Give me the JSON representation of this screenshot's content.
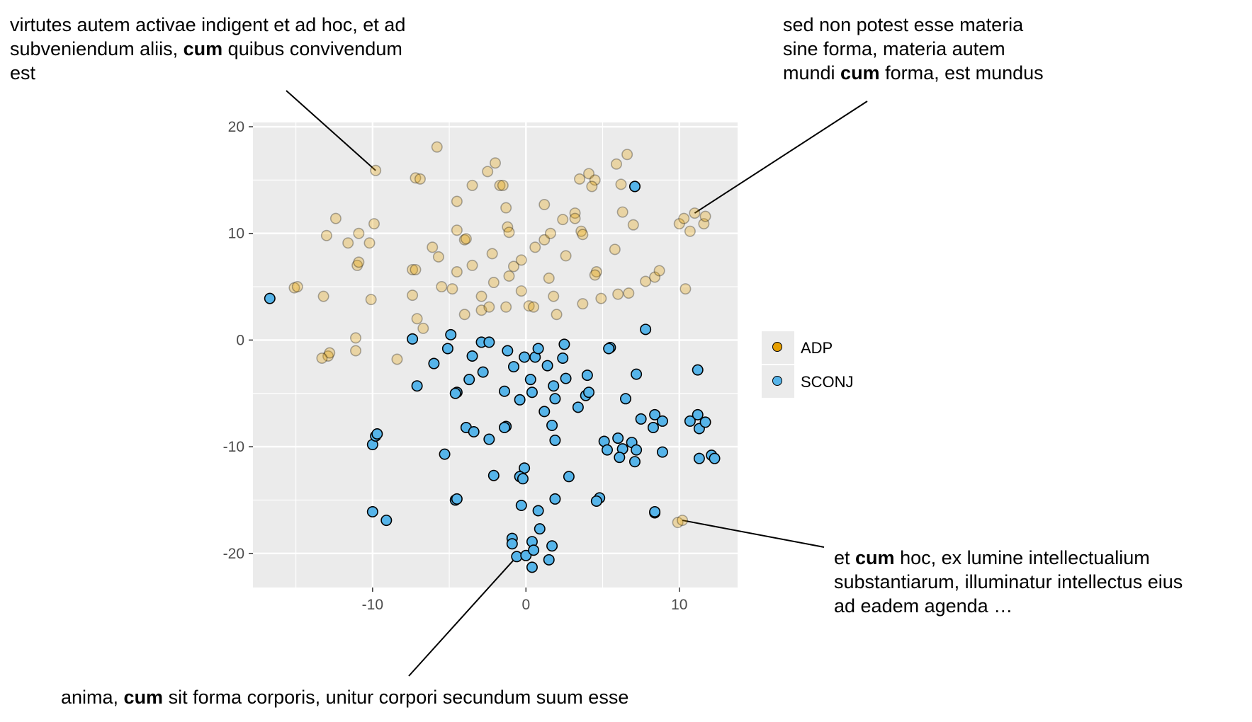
{
  "chart_data": {
    "type": "scatter",
    "title": "",
    "xlabel": "",
    "ylabel": "",
    "xlim": [
      -17.8,
      13.8
    ],
    "ylim": [
      -23.2,
      20.4
    ],
    "x_ticks": [
      -10,
      0,
      10
    ],
    "x_tick_labels": [
      "-10",
      "0",
      "10"
    ],
    "y_ticks": [
      -20,
      -10,
      0,
      10,
      20
    ],
    "y_tick_labels": [
      "-20",
      "-10",
      "0",
      "10",
      "20"
    ],
    "grid": true,
    "legend_position": "right",
    "series": [
      {
        "name": "ADP",
        "color": "#E69F00",
        "highlight": false,
        "points": [
          [
            -9.8,
            15.9
          ],
          [
            -7.2,
            15.2
          ],
          [
            -6.9,
            15.1
          ],
          [
            -5.8,
            18.1
          ],
          [
            -3.5,
            14.5
          ],
          [
            -2.5,
            15.8
          ],
          [
            -2.0,
            16.6
          ],
          [
            -1.7,
            14.5
          ],
          [
            -1.5,
            14.5
          ],
          [
            -4.5,
            13.0
          ],
          [
            -12.4,
            11.4
          ],
          [
            -13.0,
            9.8
          ],
          [
            -11.6,
            9.1
          ],
          [
            -10.9,
            10.0
          ],
          [
            -10.2,
            9.1
          ],
          [
            -9.9,
            10.9
          ],
          [
            -11.0,
            7.0
          ],
          [
            -10.9,
            7.3
          ],
          [
            -4.0,
            9.4
          ],
          [
            -3.9,
            9.5
          ],
          [
            -4.5,
            10.3
          ],
          [
            -1.3,
            12.4
          ],
          [
            -1.2,
            10.6
          ],
          [
            -1.1,
            10.1
          ],
          [
            -2.2,
            8.1
          ],
          [
            -0.8,
            6.9
          ],
          [
            -0.3,
            7.5
          ],
          [
            0.6,
            8.7
          ],
          [
            1.2,
            9.4
          ],
          [
            1.6,
            10.0
          ],
          [
            2.4,
            11.3
          ],
          [
            3.2,
            11.9
          ],
          [
            3.2,
            11.4
          ],
          [
            3.6,
            10.2
          ],
          [
            3.7,
            9.9
          ],
          [
            2.6,
            7.9
          ],
          [
            4.1,
            15.6
          ],
          [
            3.5,
            15.1
          ],
          [
            4.5,
            15.0
          ],
          [
            4.3,
            14.4
          ],
          [
            5.9,
            16.5
          ],
          [
            6.6,
            17.4
          ],
          [
            6.2,
            14.6
          ],
          [
            7.1,
            14.4
          ],
          [
            1.2,
            12.7
          ],
          [
            6.3,
            12.0
          ],
          [
            7.0,
            10.8
          ],
          [
            5.8,
            8.5
          ],
          [
            4.6,
            6.4
          ],
          [
            4.5,
            6.1
          ],
          [
            -7.4,
            6.6
          ],
          [
            -7.2,
            6.6
          ],
          [
            -6.1,
            8.7
          ],
          [
            -5.7,
            7.8
          ],
          [
            -3.5,
            7.0
          ],
          [
            -4.5,
            6.4
          ],
          [
            -5.5,
            5.0
          ],
          [
            -4.8,
            4.8
          ],
          [
            -2.1,
            5.4
          ],
          [
            -1.1,
            6.0
          ],
          [
            -0.3,
            4.6
          ],
          [
            1.5,
            5.8
          ],
          [
            -15.1,
            4.9
          ],
          [
            -14.9,
            5.0
          ],
          [
            -13.2,
            4.1
          ],
          [
            -10.1,
            3.8
          ],
          [
            -7.4,
            4.2
          ],
          [
            -7.1,
            2.0
          ],
          [
            -6.7,
            1.1
          ],
          [
            -4.0,
            2.4
          ],
          [
            -2.9,
            2.8
          ],
          [
            -2.9,
            4.1
          ],
          [
            -2.4,
            3.1
          ],
          [
            -1.3,
            3.1
          ],
          [
            0.2,
            3.2
          ],
          [
            0.5,
            3.1
          ],
          [
            1.8,
            4.1
          ],
          [
            2.0,
            2.4
          ],
          [
            3.7,
            3.4
          ],
          [
            4.9,
            3.9
          ],
          [
            6.0,
            4.3
          ],
          [
            6.7,
            4.4
          ],
          [
            7.8,
            5.5
          ],
          [
            8.4,
            5.9
          ],
          [
            8.7,
            6.5
          ],
          [
            10.0,
            10.9
          ],
          [
            10.3,
            11.4
          ],
          [
            10.7,
            10.2
          ],
          [
            11.0,
            11.9
          ],
          [
            11.6,
            10.9
          ],
          [
            11.7,
            11.6
          ],
          [
            10.4,
            4.8
          ],
          [
            -11.1,
            0.2
          ],
          [
            -11.1,
            -1.0
          ],
          [
            -12.9,
            -1.5
          ],
          [
            -12.8,
            -1.2
          ],
          [
            -13.3,
            -1.7
          ],
          [
            -8.4,
            -1.8
          ],
          [
            9.9,
            -17.1
          ],
          [
            10.2,
            -16.9
          ],
          [
            -10.0,
            -16.1
          ]
        ]
      },
      {
        "name": "SCONJ",
        "color": "#56B4E9",
        "highlight": true,
        "points": [
          [
            -16.7,
            3.9
          ],
          [
            7.1,
            14.4
          ],
          [
            7.8,
            1.0
          ],
          [
            -7.4,
            0.1
          ],
          [
            -4.9,
            0.5
          ],
          [
            -2.9,
            -0.2
          ],
          [
            -2.4,
            -0.2
          ],
          [
            -5.1,
            -0.8
          ],
          [
            -6.0,
            -2.2
          ],
          [
            -3.5,
            -1.5
          ],
          [
            -1.2,
            -1.0
          ],
          [
            -0.1,
            -1.6
          ],
          [
            0.6,
            -1.6
          ],
          [
            0.8,
            -0.8
          ],
          [
            2.5,
            -0.4
          ],
          [
            2.4,
            -1.7
          ],
          [
            -0.8,
            -2.5
          ],
          [
            1.4,
            -2.4
          ],
          [
            5.5,
            -0.7
          ],
          [
            5.4,
            -0.8
          ],
          [
            7.2,
            -3.2
          ],
          [
            -3.7,
            -3.7
          ],
          [
            -2.8,
            -3.0
          ],
          [
            0.3,
            -3.7
          ],
          [
            2.6,
            -3.6
          ],
          [
            4.0,
            -3.3
          ],
          [
            -7.1,
            -4.3
          ],
          [
            -4.5,
            -4.9
          ],
          [
            -4.6,
            -5.0
          ],
          [
            -1.4,
            -4.8
          ],
          [
            0.4,
            -4.9
          ],
          [
            1.8,
            -4.3
          ],
          [
            3.9,
            -5.2
          ],
          [
            4.1,
            -4.9
          ],
          [
            -0.4,
            -5.6
          ],
          [
            1.9,
            -5.5
          ],
          [
            3.4,
            -6.3
          ],
          [
            6.5,
            -5.5
          ],
          [
            1.2,
            -6.7
          ],
          [
            -3.9,
            -8.2
          ],
          [
            -3.4,
            -8.6
          ],
          [
            -2.4,
            -9.3
          ],
          [
            -1.3,
            -8.1
          ],
          [
            -1.4,
            -8.2
          ],
          [
            1.7,
            -8.0
          ],
          [
            1.9,
            -9.4
          ],
          [
            7.5,
            -7.4
          ],
          [
            8.3,
            -8.2
          ],
          [
            8.4,
            -7.0
          ],
          [
            8.9,
            -7.6
          ],
          [
            10.7,
            -7.6
          ],
          [
            11.2,
            -7.0
          ],
          [
            11.3,
            -8.3
          ],
          [
            11.7,
            -7.7
          ],
          [
            11.2,
            -2.8
          ],
          [
            5.1,
            -9.5
          ],
          [
            5.3,
            -10.3
          ],
          [
            6.0,
            -9.2
          ],
          [
            6.3,
            -10.2
          ],
          [
            6.9,
            -9.6
          ],
          [
            7.2,
            -10.3
          ],
          [
            6.1,
            -11.0
          ],
          [
            7.1,
            -11.4
          ],
          [
            8.9,
            -10.5
          ],
          [
            11.3,
            -11.1
          ],
          [
            12.1,
            -10.8
          ],
          [
            12.3,
            -11.1
          ],
          [
            -5.3,
            -10.7
          ],
          [
            -10.0,
            -9.8
          ],
          [
            -9.8,
            -9.0
          ],
          [
            -9.7,
            -8.8
          ],
          [
            -2.1,
            -12.7
          ],
          [
            -0.1,
            -12.0
          ],
          [
            -0.4,
            -12.8
          ],
          [
            -0.2,
            -13.0
          ],
          [
            2.8,
            -12.8
          ],
          [
            -4.6,
            -15.0
          ],
          [
            -4.5,
            -14.9
          ],
          [
            1.9,
            -14.9
          ],
          [
            4.8,
            -14.8
          ],
          [
            4.6,
            -15.1
          ],
          [
            -0.3,
            -15.5
          ],
          [
            0.8,
            -16.0
          ],
          [
            8.4,
            -16.2
          ],
          [
            8.4,
            -16.1
          ],
          [
            -10.0,
            -16.1
          ],
          [
            -9.1,
            -16.9
          ],
          [
            -0.9,
            -18.6
          ],
          [
            -0.9,
            -19.1
          ],
          [
            0.9,
            -17.7
          ],
          [
            0.4,
            -18.9
          ],
          [
            1.7,
            -19.3
          ],
          [
            -0.6,
            -20.3
          ],
          [
            0.0,
            -20.2
          ],
          [
            0.5,
            -19.7
          ],
          [
            1.5,
            -20.6
          ],
          [
            0.4,
            -21.3
          ]
        ]
      }
    ],
    "annotations": [
      {
        "lines": [
          [
            "virtutes autem activae indigent et ad hoc, et ad"
          ],
          [
            "subveniendum aliis, ",
            "cum",
            " quibus convivendum"
          ],
          [
            "est"
          ]
        ],
        "point": [
          -9.8,
          15.9
        ]
      },
      {
        "lines": [
          [
            "sed non potest esse materia"
          ],
          [
            "sine forma, materia autem"
          ],
          [
            "mundi ",
            "cum",
            " forma, est mundus"
          ]
        ],
        "point": [
          11.0,
          11.9
        ]
      },
      {
        "lines": [
          [
            "et ",
            "cum",
            " hoc, ex lumine intellectualium"
          ],
          [
            "substantiarum, illuminatur intellectus eius"
          ],
          [
            "ad eadem agenda …"
          ]
        ],
        "point": [
          10.2,
          -16.9
        ]
      },
      {
        "lines": [
          [
            "anima, ",
            "cum",
            " sit forma corporis, unitur corpori secundum suum esse"
          ]
        ],
        "point": [
          -0.6,
          -20.3
        ]
      }
    ]
  }
}
